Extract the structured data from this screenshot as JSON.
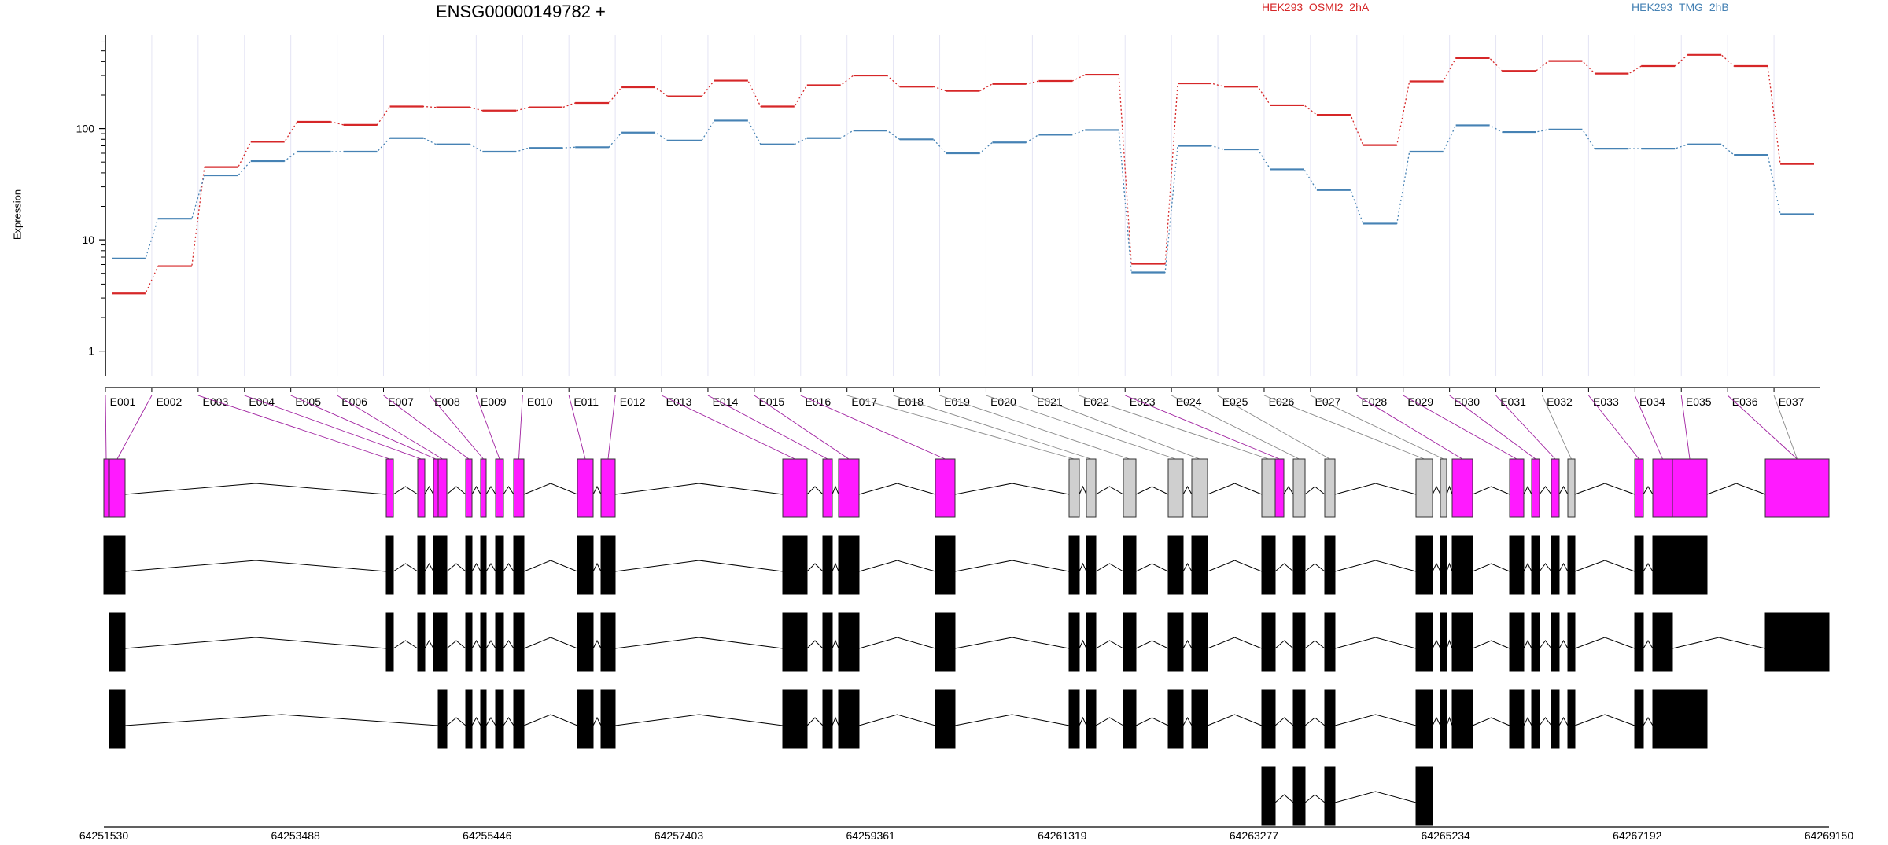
{
  "chart_data": {
    "type": "line",
    "title": "ENSG00000149782 +",
    "ylabel": "Expression",
    "yscale": "log",
    "yticks": [
      "1",
      "10",
      "100"
    ],
    "ytick_values": [
      1,
      10,
      100
    ],
    "ylim": [
      0.6,
      700
    ],
    "legend_placement": "top",
    "categories": [
      "E001",
      "E002",
      "E003",
      "E004",
      "E005",
      "E006",
      "E007",
      "E008",
      "E009",
      "E010",
      "E011",
      "E012",
      "E013",
      "E014",
      "E015",
      "E016",
      "E017",
      "E018",
      "E019",
      "E020",
      "E021",
      "E022",
      "E023",
      "E024",
      "E025",
      "E026",
      "E027",
      "E028",
      "E029",
      "E030",
      "E031",
      "E032",
      "E033",
      "E034",
      "E035",
      "E036",
      "E037"
    ],
    "series": [
      {
        "name": "HEK293_OSMI2_2hA",
        "color": "#d62728",
        "values": [
          3.3,
          5.8,
          45,
          76,
          115,
          108,
          158,
          155,
          145,
          155,
          170,
          235,
          195,
          270,
          158,
          245,
          300,
          238,
          218,
          252,
          268,
          305,
          6.1,
          255,
          238,
          162,
          133,
          71,
          266,
          430,
          330,
          405,
          312,
          365,
          460,
          365,
          48
        ]
      },
      {
        "name": "HEK293_TMG_2hB",
        "color": "#4682b4",
        "values": [
          6.8,
          15.5,
          38,
          51,
          62,
          62,
          82,
          72,
          62,
          67,
          68,
          92,
          78,
          118,
          72,
          82,
          96,
          80,
          60,
          75,
          88,
          97,
          5.1,
          70,
          65,
          43,
          28,
          14,
          62,
          107,
          93,
          98,
          66,
          66,
          72,
          58,
          17
        ]
      }
    ],
    "x_positions": [
      64251530,
      64253488,
      64255446,
      64257403,
      64259361,
      64261319,
      64263277,
      64265234,
      64267192,
      64269150
    ],
    "x_tick_labels": [
      "64251530",
      "64253488",
      "64255446",
      "64257403",
      "64259361",
      "64261319",
      "64263277",
      "64265234",
      "64267192",
      "64269150"
    ],
    "exon_models": {
      "exon_colors": [
        "magenta",
        "magenta",
        "magenta",
        "magenta",
        "magenta",
        "magenta",
        "magenta",
        "magenta",
        "magenta",
        "magenta",
        "magenta",
        "magenta",
        "magenta",
        "magenta",
        "magenta",
        "magenta",
        "gray",
        "gray",
        "gray",
        "gray",
        "gray",
        "gray",
        "magenta",
        "gray",
        "gray",
        "gray",
        "gray",
        "magenta",
        "magenta",
        "magenta",
        "magenta",
        "gray",
        "magenta",
        "magenta",
        "magenta",
        "magenta",
        "gray"
      ],
      "highlight_color": "#ff1aff",
      "inactive_color": "#cfcfcf",
      "transcript_color": "#000000"
    }
  }
}
